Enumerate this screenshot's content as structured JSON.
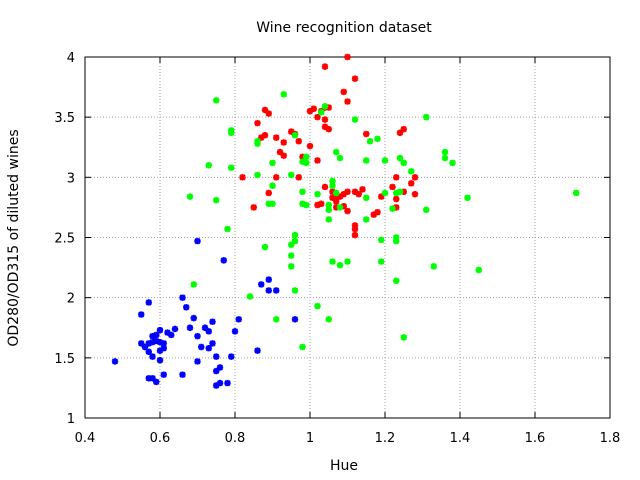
{
  "chart_data": {
    "type": "scatter",
    "title": "Wine recognition dataset",
    "xlabel": "Hue",
    "ylabel": "OD280/OD315 of diluted wines",
    "xlim": [
      0.4,
      1.8
    ],
    "ylim": [
      1,
      4
    ],
    "xticks": [
      "0.4",
      "0.6",
      "0.8",
      "1",
      "1.2",
      "1.4",
      "1.6",
      "1.8"
    ],
    "yticks": [
      "1",
      "1.5",
      "2",
      "2.5",
      "3",
      "3.5",
      "4"
    ],
    "grid": true,
    "legend": "none",
    "marker": "*",
    "series": [
      {
        "color": "#ff0000",
        "points": [
          [
            1.04,
            3.92
          ],
          [
            1.1,
            4.0
          ],
          [
            1.12,
            3.82
          ],
          [
            1.09,
            3.71
          ],
          [
            1.1,
            3.63
          ],
          [
            1.05,
            3.58
          ],
          [
            1.04,
            3.58
          ],
          [
            1.03,
            3.55
          ],
          [
            1.01,
            3.57
          ],
          [
            1.0,
            3.55
          ],
          [
            0.88,
            3.56
          ],
          [
            0.89,
            3.53
          ],
          [
            0.86,
            3.45
          ],
          [
            1.04,
            3.48
          ],
          [
            1.05,
            3.4
          ],
          [
            1.04,
            3.42
          ],
          [
            1.02,
            3.5
          ],
          [
            1.15,
            3.36
          ],
          [
            1.25,
            3.4
          ],
          [
            1.24,
            3.37
          ],
          [
            0.88,
            3.35
          ],
          [
            0.87,
            3.33
          ],
          [
            0.91,
            3.33
          ],
          [
            0.95,
            3.38
          ],
          [
            0.96,
            3.36
          ],
          [
            0.97,
            3.3
          ],
          [
            0.93,
            3.29
          ],
          [
            0.92,
            3.21
          ],
          [
            0.93,
            3.18
          ],
          [
            0.98,
            3.17
          ],
          [
            1.0,
            3.26
          ],
          [
            1.02,
            3.14
          ],
          [
            0.97,
            3.0
          ],
          [
            0.91,
            3.0
          ],
          [
            0.82,
            3.0
          ],
          [
            1.23,
            3.0
          ],
          [
            1.28,
            3.0
          ],
          [
            1.27,
            2.95
          ],
          [
            1.22,
            2.92
          ],
          [
            1.25,
            2.88
          ],
          [
            1.04,
            2.92
          ],
          [
            1.06,
            2.88
          ],
          [
            1.09,
            2.86
          ],
          [
            1.1,
            2.88
          ],
          [
            1.12,
            2.88
          ],
          [
            1.14,
            2.9
          ],
          [
            1.13,
            2.86
          ],
          [
            1.06,
            2.83
          ],
          [
            1.07,
            2.84
          ],
          [
            1.08,
            2.84
          ],
          [
            1.19,
            2.84
          ],
          [
            1.28,
            2.86
          ],
          [
            1.23,
            2.82
          ],
          [
            1.07,
            2.8
          ],
          [
            1.07,
            2.75
          ],
          [
            1.03,
            2.78
          ],
          [
            1.02,
            2.77
          ],
          [
            1.09,
            2.76
          ],
          [
            1.1,
            2.72
          ],
          [
            1.18,
            2.71
          ],
          [
            1.17,
            2.69
          ],
          [
            1.23,
            2.75
          ],
          [
            1.12,
            2.6
          ],
          [
            1.12,
            2.52
          ],
          [
            1.12,
            2.57
          ],
          [
            0.85,
            2.75
          ],
          [
            0.89,
            2.87
          ]
        ]
      },
      {
        "color": "#00ff00",
        "points": [
          [
            0.75,
            3.64
          ],
          [
            0.93,
            3.69
          ],
          [
            0.79,
            3.39
          ],
          [
            0.79,
            3.37
          ],
          [
            0.86,
            3.28
          ],
          [
            0.86,
            3.3
          ],
          [
            0.96,
            3.35
          ],
          [
            1.31,
            3.5
          ],
          [
            1.12,
            3.48
          ],
          [
            1.04,
            3.59
          ],
          [
            1.03,
            3.54
          ],
          [
            1.16,
            3.3
          ],
          [
            1.18,
            3.32
          ],
          [
            1.36,
            3.21
          ],
          [
            1.36,
            3.16
          ],
          [
            1.38,
            3.12
          ],
          [
            1.15,
            3.14
          ],
          [
            1.2,
            3.14
          ],
          [
            1.25,
            3.12
          ],
          [
            1.24,
            3.16
          ],
          [
            1.07,
            3.21
          ],
          [
            0.99,
            3.17
          ],
          [
            0.99,
            3.12
          ],
          [
            0.9,
            3.12
          ],
          [
            0.73,
            3.1
          ],
          [
            0.79,
            3.08
          ],
          [
            0.86,
            3.02
          ],
          [
            0.95,
            3.02
          ],
          [
            0.98,
            3.13
          ],
          [
            1.08,
            3.16
          ],
          [
            0.9,
            2.93
          ],
          [
            0.98,
            2.88
          ],
          [
            1.06,
            2.97
          ],
          [
            1.06,
            2.93
          ],
          [
            1.02,
            2.86
          ],
          [
            1.07,
            2.87
          ],
          [
            1.15,
            2.83
          ],
          [
            1.2,
            2.87
          ],
          [
            1.23,
            2.87
          ],
          [
            1.27,
            3.05
          ],
          [
            1.24,
            2.88
          ],
          [
            1.42,
            2.83
          ],
          [
            1.71,
            2.87
          ],
          [
            0.68,
            2.84
          ],
          [
            0.75,
            2.81
          ],
          [
            0.89,
            2.78
          ],
          [
            0.9,
            2.78
          ],
          [
            0.98,
            2.78
          ],
          [
            0.99,
            2.77
          ],
          [
            1.05,
            2.77
          ],
          [
            1.05,
            2.73
          ],
          [
            1.08,
            2.75
          ],
          [
            1.22,
            2.74
          ],
          [
            1.31,
            2.73
          ],
          [
            1.05,
            2.65
          ],
          [
            1.15,
            2.65
          ],
          [
            1.19,
            2.48
          ],
          [
            0.78,
            2.57
          ],
          [
            0.96,
            2.52
          ],
          [
            0.96,
            2.47
          ],
          [
            0.95,
            2.44
          ],
          [
            0.88,
            2.42
          ],
          [
            1.23,
            2.47
          ],
          [
            1.23,
            2.5
          ],
          [
            1.23,
            2.14
          ],
          [
            1.33,
            2.26
          ],
          [
            1.45,
            2.23
          ],
          [
            1.1,
            2.3
          ],
          [
            1.19,
            2.3
          ],
          [
            1.06,
            2.3
          ],
          [
            1.08,
            2.27
          ],
          [
            0.95,
            2.26
          ],
          [
            0.95,
            2.35
          ],
          [
            0.96,
            2.06
          ],
          [
            0.84,
            2.01
          ],
          [
            0.69,
            2.11
          ],
          [
            1.02,
            1.93
          ],
          [
            0.91,
            1.82
          ],
          [
            1.05,
            1.82
          ],
          [
            0.98,
            1.59
          ],
          [
            1.25,
            1.67
          ]
        ]
      },
      {
        "color": "#0000ff",
        "points": [
          [
            0.7,
            2.47
          ],
          [
            0.77,
            2.31
          ],
          [
            0.89,
            2.15
          ],
          [
            0.87,
            2.11
          ],
          [
            0.89,
            2.06
          ],
          [
            0.91,
            2.06
          ],
          [
            0.66,
            2.0
          ],
          [
            0.57,
            1.96
          ],
          [
            0.67,
            1.92
          ],
          [
            0.69,
            1.83
          ],
          [
            0.81,
            1.82
          ],
          [
            0.96,
            1.82
          ],
          [
            0.74,
            1.8
          ],
          [
            0.72,
            1.75
          ],
          [
            0.68,
            1.75
          ],
          [
            0.64,
            1.74
          ],
          [
            0.55,
            1.86
          ],
          [
            0.6,
            1.73
          ],
          [
            0.62,
            1.71
          ],
          [
            0.56,
            1.59
          ],
          [
            0.57,
            1.62
          ],
          [
            0.58,
            1.63
          ],
          [
            0.59,
            1.64
          ],
          [
            0.58,
            1.51
          ],
          [
            0.57,
            1.55
          ],
          [
            0.6,
            1.56
          ],
          [
            0.6,
            1.63
          ],
          [
            0.61,
            1.58
          ],
          [
            0.61,
            1.62
          ],
          [
            0.58,
            1.68
          ],
          [
            0.55,
            1.62
          ],
          [
            0.59,
            1.69
          ],
          [
            0.7,
            1.68
          ],
          [
            0.73,
            1.58
          ],
          [
            0.74,
            1.62
          ],
          [
            0.73,
            1.72
          ],
          [
            0.8,
            1.72
          ],
          [
            0.79,
            1.51
          ],
          [
            0.75,
            1.51
          ],
          [
            0.76,
            1.42
          ],
          [
            0.7,
            1.47
          ],
          [
            0.86,
            1.56
          ],
          [
            0.57,
            1.33
          ],
          [
            0.58,
            1.33
          ],
          [
            0.59,
            1.3
          ],
          [
            0.61,
            1.36
          ],
          [
            0.66,
            1.36
          ],
          [
            0.75,
            1.27
          ],
          [
            0.76,
            1.29
          ],
          [
            0.78,
            1.29
          ],
          [
            0.75,
            1.39
          ],
          [
            0.48,
            1.47
          ],
          [
            0.6,
            1.48
          ],
          [
            0.63,
            1.69
          ],
          [
            0.71,
            1.59
          ]
        ]
      }
    ]
  }
}
